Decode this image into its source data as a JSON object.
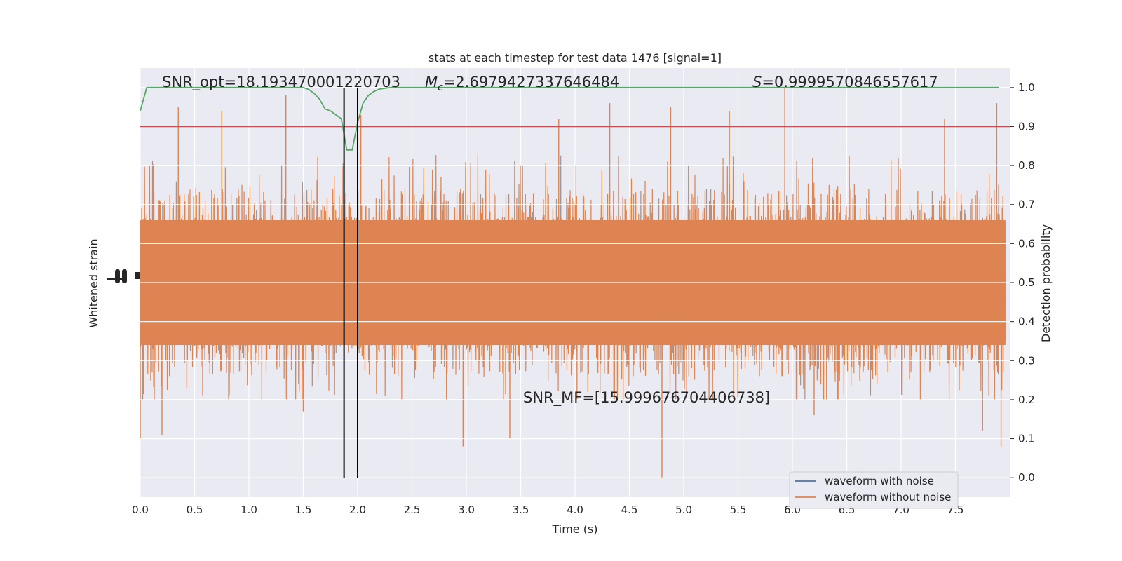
{
  "chart_data": {
    "type": "line",
    "title": "stats at each timestep for test data 1476 [signal=1]",
    "xlabel": "Time (s)",
    "ylabel_left": "Whitened strain",
    "ylabel_right": "Detection probability",
    "xlim": [
      0.0,
      8.0
    ],
    "ylim_right": [
      -0.05,
      1.05
    ],
    "x_ticks": [
      "0.0",
      "0.5",
      "1.0",
      "1.5",
      "2.0",
      "2.5",
      "3.0",
      "3.5",
      "4.0",
      "4.5",
      "5.0",
      "5.5",
      "6.0",
      "6.5",
      "7.0",
      "7.5"
    ],
    "y_ticks_right": [
      "0.0",
      "0.1",
      "0.2",
      "0.3",
      "0.4",
      "0.5",
      "0.6",
      "0.7",
      "0.8",
      "0.9",
      "1.0"
    ],
    "grid": true,
    "legend_position": "lower-right",
    "annotations": {
      "snr_opt": "SNR_opt=18.193470001220703",
      "mc_symbol": "M",
      "mc_subscript": "c",
      "mc_value": "=2.6979427337646484",
      "s_symbol": "S",
      "s_value": "=0.9999570846557617",
      "snr_mf": "SNR_MF=[15.999676704406738]"
    },
    "vertical_lines_x": [
      1.875,
      2.0
    ],
    "threshold": 0.9,
    "series": [
      {
        "name": "waveform with noise",
        "color": "#4c72b0",
        "kind": "strain"
      },
      {
        "name": "waveform without noise",
        "color": "#dd8452",
        "kind": "strain"
      }
    ],
    "probability": {
      "color": "#55a868",
      "x": [
        0.0,
        0.06,
        0.1,
        0.2,
        0.4,
        0.6,
        0.8,
        1.0,
        1.2,
        1.4,
        1.5,
        1.55,
        1.6,
        1.65,
        1.7,
        1.75,
        1.8,
        1.85,
        1.875,
        1.9,
        1.925,
        1.95,
        2.0,
        2.05,
        2.1,
        2.15,
        2.2,
        2.25,
        2.3,
        2.35,
        2.4,
        2.5,
        3.0,
        4.0,
        5.0,
        6.0,
        7.0,
        7.9
      ],
      "y": [
        0.94,
        1.0,
        1.0,
        1.0,
        1.0,
        1.0,
        1.0,
        1.0,
        1.0,
        1.0,
        1.0,
        0.995,
        0.985,
        0.97,
        0.945,
        0.94,
        0.93,
        0.92,
        0.88,
        0.84,
        0.84,
        0.84,
        0.91,
        0.96,
        0.98,
        0.99,
        0.996,
        0.998,
        1.0,
        1.0,
        1.0,
        1.0,
        1.0,
        1.0,
        1.0,
        1.0,
        1.0,
        1.0
      ]
    },
    "strain_envelope": {
      "note_units": "detection-probability axis units",
      "center": 0.5,
      "typical_max": 0.8,
      "typical_min": 0.28,
      "spike_x": [
        0.35,
        0.75,
        1.34,
        2.03,
        3.85,
        4.32,
        4.88,
        5.42,
        5.93,
        7.4,
        7.88
      ],
      "spike_y": [
        0.95,
        0.94,
        0.98,
        0.93,
        0.92,
        0.96,
        0.95,
        0.94,
        1.0,
        0.92,
        0.96
      ],
      "dip_x": [
        0.0,
        0.2,
        1.5,
        2.97,
        3.4,
        4.8,
        6.2,
        7.75,
        7.92
      ],
      "dip_y": [
        0.1,
        0.11,
        0.17,
        0.08,
        0.1,
        0.0,
        0.16,
        0.12,
        0.08
      ]
    }
  }
}
